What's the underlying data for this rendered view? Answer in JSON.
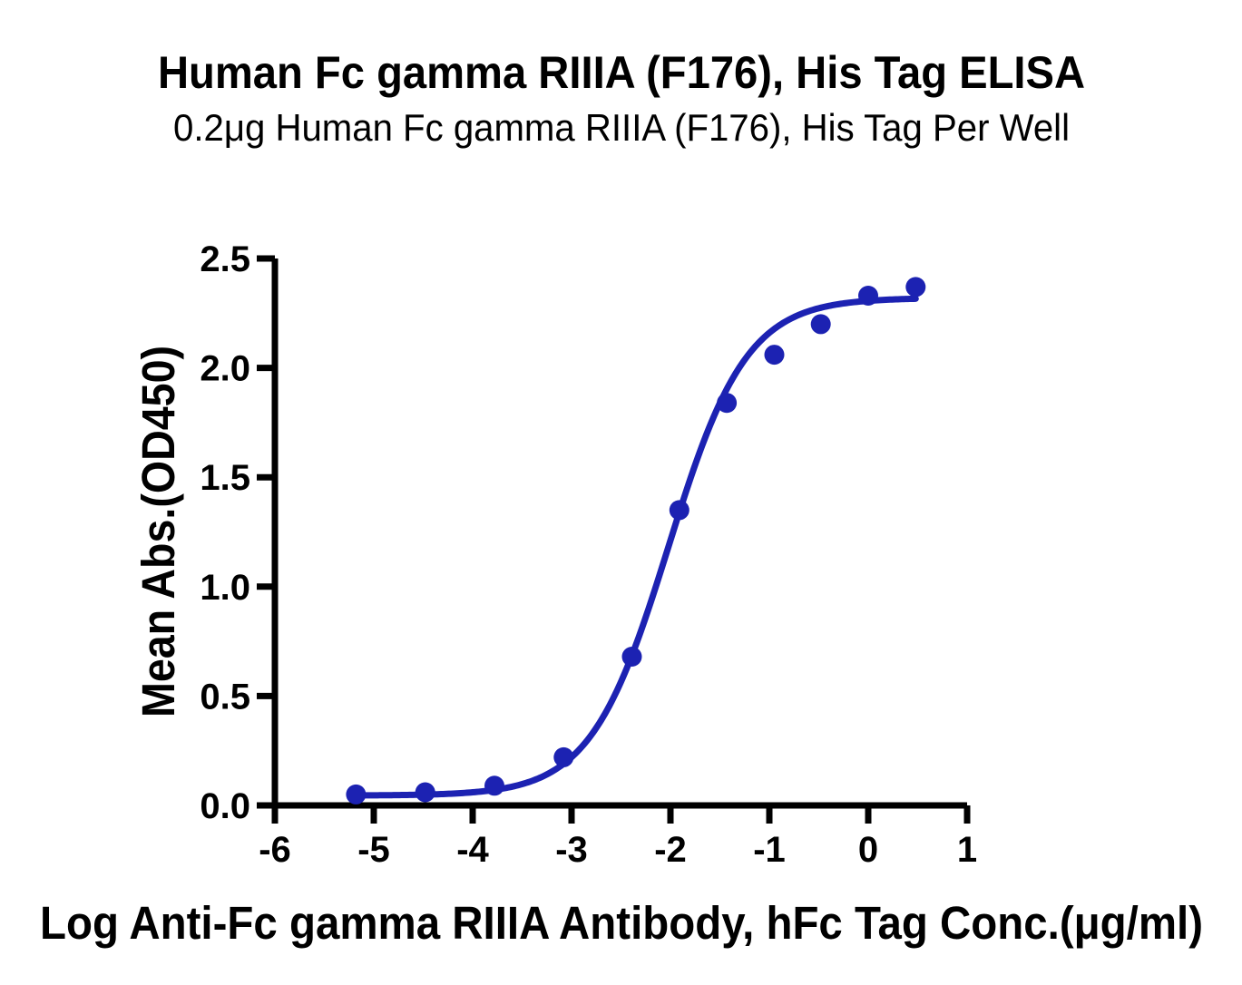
{
  "chart_data": {
    "type": "scatter",
    "title": "Human Fc gamma RIIIA (F176), His Tag ELISA",
    "subtitle": "0.2μg Human Fc gamma RIIIA (F176), His Tag Per Well",
    "xlabel": "Log Anti-Fc gamma RIIIA Antibody, hFc Tag Conc.(μg/ml)",
    "ylabel": "Mean Abs.(OD450)",
    "xlim": [
      -6,
      1
    ],
    "ylim": [
      0,
      2.5
    ],
    "grid": false,
    "legend_position": "none",
    "x_ticks": {
      "values": [
        -6,
        -5,
        -4,
        -3,
        -2,
        -1,
        0,
        1
      ],
      "labels": [
        "-6",
        "-5",
        "-4",
        "-3",
        "-2",
        "-1",
        "0",
        "1"
      ]
    },
    "y_ticks": {
      "values": [
        0,
        0.5,
        1.0,
        1.5,
        2.0,
        2.5
      ],
      "labels": [
        "0.0",
        "0.5",
        "1.0",
        "1.5",
        "2.0",
        "2.5"
      ]
    },
    "series": [
      {
        "name": "Anti-Fc gamma RIIIA Antibody, hFc Tag",
        "marker": "circle",
        "points": [
          [
            -5.18,
            0.05
          ],
          [
            -4.48,
            0.06
          ],
          [
            -3.78,
            0.09
          ],
          [
            -3.08,
            0.22
          ],
          [
            -2.39,
            0.68
          ],
          [
            -1.91,
            1.35
          ],
          [
            -1.43,
            1.84
          ],
          [
            -0.95,
            2.06
          ],
          [
            -0.48,
            2.2
          ],
          [
            0.0,
            2.33
          ],
          [
            0.48,
            2.37
          ]
        ],
        "fit_curve": {
          "model": "4PL",
          "bottom": 0.045,
          "top": 2.32,
          "logEC50": -2.02,
          "hill": 1.1,
          "x_range": [
            -5.18,
            0.48
          ]
        }
      }
    ],
    "colors": {
      "curve": "#1c22b2",
      "points": "#1c22b2",
      "axis": "#000000",
      "text": "#000000",
      "background": "#ffffff"
    }
  }
}
